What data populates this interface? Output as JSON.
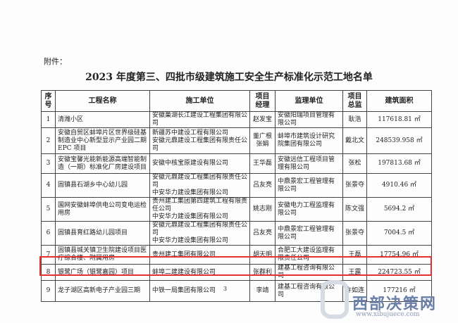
{
  "header": {
    "attachment": "附件：",
    "title": "2023 年度第三、四批市级建筑施工安全生产标准化示范工地名单"
  },
  "table": {
    "columns": [
      "序号",
      "工程名称",
      "施工单位",
      "项目经理",
      "监理单位",
      "项目总监",
      "建筑面积"
    ],
    "rows": [
      [
        "1",
        "清潍小区",
        [
          "安徽巢湖长江建设工程集团有限公司"
        ],
        [
          "赵发宝"
        ],
        "安徽阳瑞项目管理有限公司",
        "耿浩",
        "117618.81 ㎡"
      ],
      [
        "2",
        "安徽自贸区蚌埠片区世界级硅基制造业中心新型显示产业园二期 EPC 项目",
        [
          "新疆苏中建设工程有限公司",
          "安徽元鼎建设工程集团有限责任公司"
        ],
        [
          "董广根",
          "张娟"
        ],
        "蚌埠市建筑设计研究院集团有限公司",
        "戴北文",
        "248539.958 ㎡"
      ],
      [
        "3",
        "安徽宝馨光能新能源高端智能制造（一期）标准化厂房建设项目",
        [
          "安徽中核宝原建设有限公司"
        ],
        [
          "王华磊"
        ],
        "安徽远信工程项目管理有限公司",
        "张松",
        "197813.68 ㎡"
      ],
      [
        "4",
        "固镇县石湖乡中心幼儿园",
        [
          "安徽元鼎建设工程集团有限责任公司",
          "中安华力建设集团有限公司"
        ],
        [
          "吕友亮"
        ],
        "中鼎景宏工程管理有限公司",
        "张景夺",
        "4910.46 ㎡"
      ],
      [
        "5",
        "国网安徽蚌埠供电公司变电运检用房",
        [
          "贵州建工集团第四建筑工程有限责任公司",
          "中安华力建设集团有限公司"
        ],
        [
          "姚志刚"
        ],
        "安徽电力工程监理有限公司",
        "陈文强",
        "5694.2 ㎡"
      ],
      [
        "6",
        "固镇县育红路幼儿园项目",
        [
          "安徽元鼎建设工程集团有限责任公司",
          "中安华力建设集团有限公司"
        ],
        [
          "吕友亮"
        ],
        "中鼎景宏工程管理有限公司",
        "张景夺",
        "7004.5 ㎡"
      ],
      [
        "7",
        "固镇县城关镇卫生院建设项目医疗综合楼、附属用房",
        [
          "贵州建工集团有限公司"
        ],
        [
          "胡天明"
        ],
        "合肥工大建设监理有限责任公司",
        "王磊",
        "17754.96 ㎡"
      ],
      [
        "8",
        "银鹭广场（银鹭嘉园）项目",
        [
          "蚌埠二建建设有限公司"
        ],
        [
          "张群利"
        ],
        "建基工程咨询有限公司",
        "王露",
        "224723.55 ㎡"
      ],
      [
        "9",
        "龙子湖区高新电子产业园三期",
        [
          "中铁一局集团有限公司"
        ],
        [
          "李靖"
        ],
        "建基工程咨询有限公司",
        "许如连",
        "177216 ㎡"
      ]
    ]
  },
  "footer": {
    "page": "3",
    "watermark": "西部决策网",
    "watermark_url": "www.xibujuece.com"
  }
}
